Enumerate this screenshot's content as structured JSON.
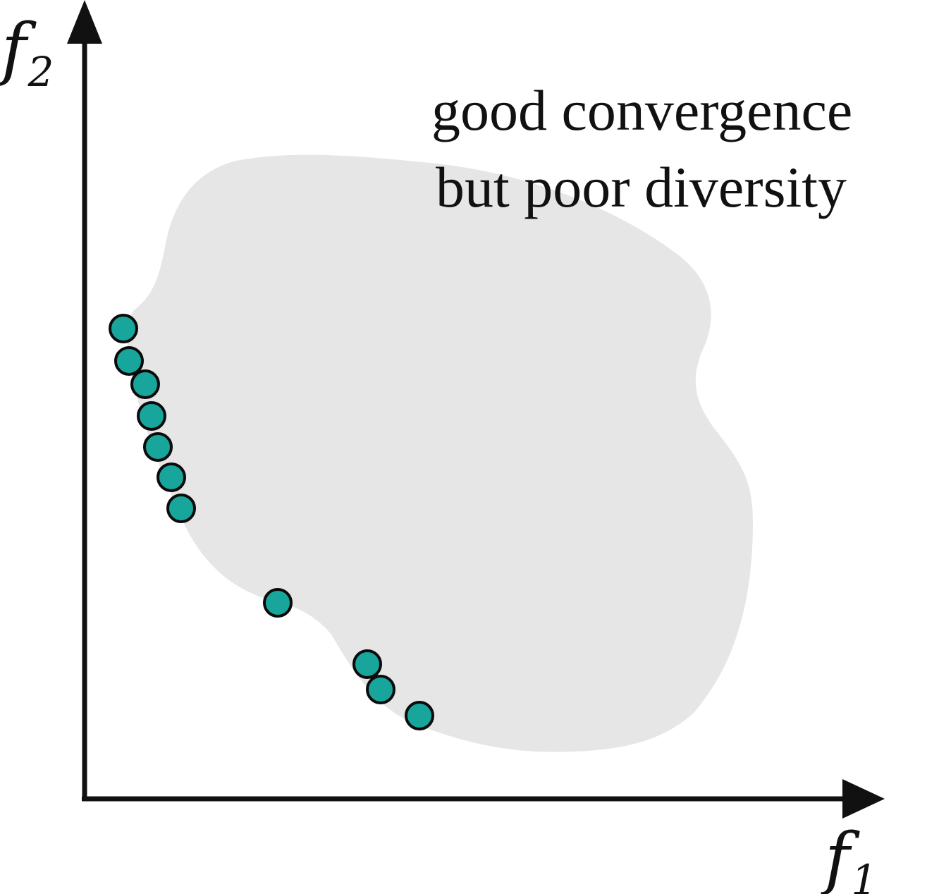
{
  "annotation": {
    "line1": "good convergence",
    "line2": "but poor diversity"
  },
  "axes": {
    "x_label": "f",
    "x_subscript": "1",
    "y_label": "f",
    "y_subscript": "2"
  },
  "colors": {
    "point_fill": "#17a59c",
    "region_fill": "#e6e6e6",
    "axis": "#111111"
  },
  "solution_count": 11
}
